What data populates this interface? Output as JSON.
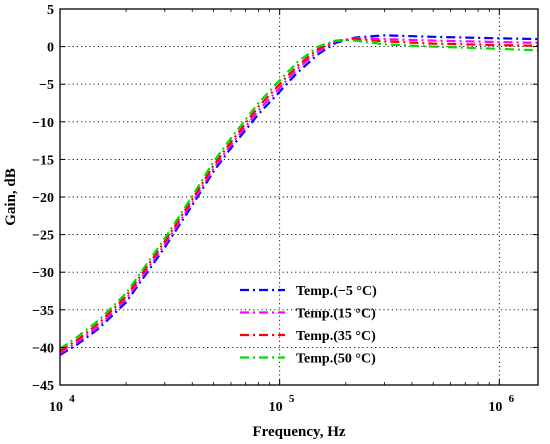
{
  "chart_data": {
    "type": "line",
    "xscale": "log",
    "x_ticks": [
      {
        "base": "10",
        "exp": "4",
        "value": 10000
      },
      {
        "base": "10",
        "exp": "5",
        "value": 100000
      },
      {
        "base": "10",
        "exp": "6",
        "value": 1000000
      }
    ],
    "xlim": [
      10000,
      1500000
    ],
    "ylim": [
      -45,
      5
    ],
    "y_ticks": [
      {
        "label": "5",
        "value": 5
      },
      {
        "label": "0",
        "value": 0
      },
      {
        "label": "−5",
        "value": -5
      },
      {
        "label": "−10",
        "value": -10
      },
      {
        "label": "−15",
        "value": -15
      },
      {
        "label": "−20",
        "value": -20
      },
      {
        "label": "−25",
        "value": -25
      },
      {
        "label": "−30",
        "value": -30
      },
      {
        "label": "−35",
        "value": -35
      },
      {
        "label": "−40",
        "value": -40
      },
      {
        "label": "−45",
        "value": -45
      }
    ],
    "xlabel": "Frequency, Hz",
    "ylabel": "Gain, dB",
    "grid": true,
    "legend_position": "lower-center",
    "series": [
      {
        "name": "Temp.(−5 °C)",
        "color": "#0000ff",
        "points": [
          [
            10000,
            -41.0
          ],
          [
            12000,
            -39.6
          ],
          [
            15000,
            -37.5
          ],
          [
            20000,
            -34.0
          ],
          [
            30000,
            -26.7
          ],
          [
            40000,
            -21.1
          ],
          [
            50000,
            -16.6
          ],
          [
            60000,
            -13.5
          ],
          [
            80000,
            -9.0
          ],
          [
            100000,
            -6.0
          ],
          [
            120000,
            -3.5
          ],
          [
            150000,
            -1.0
          ],
          [
            180000,
            0.5
          ],
          [
            220000,
            1.2
          ],
          [
            300000,
            1.5
          ],
          [
            500000,
            1.3
          ],
          [
            1000000,
            1.1
          ],
          [
            1500000,
            1.0
          ]
        ]
      },
      {
        "name": "Temp.(15 °C)",
        "color": "#ff00ff",
        "points": [
          [
            10000,
            -40.8
          ],
          [
            12000,
            -39.3
          ],
          [
            15000,
            -37.2
          ],
          [
            20000,
            -33.6
          ],
          [
            30000,
            -26.3
          ],
          [
            40000,
            -20.7
          ],
          [
            50000,
            -16.2
          ],
          [
            60000,
            -13.1
          ],
          [
            80000,
            -8.5
          ],
          [
            100000,
            -5.5
          ],
          [
            120000,
            -3.0
          ],
          [
            150000,
            -0.6
          ],
          [
            180000,
            0.7
          ],
          [
            220000,
            1.1
          ],
          [
            300000,
            1.0
          ],
          [
            500000,
            0.8
          ],
          [
            1000000,
            0.6
          ],
          [
            1500000,
            0.5
          ]
        ]
      },
      {
        "name": "Temp.(35 °C)",
        "color": "#ff0000",
        "points": [
          [
            10000,
            -40.5
          ],
          [
            12000,
            -39.0
          ],
          [
            15000,
            -36.8
          ],
          [
            20000,
            -33.2
          ],
          [
            30000,
            -25.9
          ],
          [
            40000,
            -20.3
          ],
          [
            50000,
            -15.8
          ],
          [
            60000,
            -12.7
          ],
          [
            80000,
            -8.0
          ],
          [
            100000,
            -5.0
          ],
          [
            120000,
            -2.6
          ],
          [
            150000,
            -0.3
          ],
          [
            180000,
            0.8
          ],
          [
            220000,
            1.0
          ],
          [
            300000,
            0.7
          ],
          [
            500000,
            0.4
          ],
          [
            1000000,
            0.2
          ],
          [
            1500000,
            0.1
          ]
        ]
      },
      {
        "name": "Temp.(50 °C)",
        "color": "#00dd00",
        "points": [
          [
            10000,
            -40.2
          ],
          [
            12000,
            -38.6
          ],
          [
            15000,
            -36.4
          ],
          [
            20000,
            -32.8
          ],
          [
            30000,
            -25.5
          ],
          [
            40000,
            -19.9
          ],
          [
            50000,
            -15.3
          ],
          [
            60000,
            -12.2
          ],
          [
            80000,
            -7.5
          ],
          [
            100000,
            -4.5
          ],
          [
            120000,
            -2.1
          ],
          [
            150000,
            0.0
          ],
          [
            180000,
            0.8
          ],
          [
            220000,
            0.8
          ],
          [
            300000,
            0.3
          ],
          [
            500000,
            0.0
          ],
          [
            1000000,
            -0.3
          ],
          [
            1500000,
            -0.5
          ]
        ]
      }
    ]
  }
}
